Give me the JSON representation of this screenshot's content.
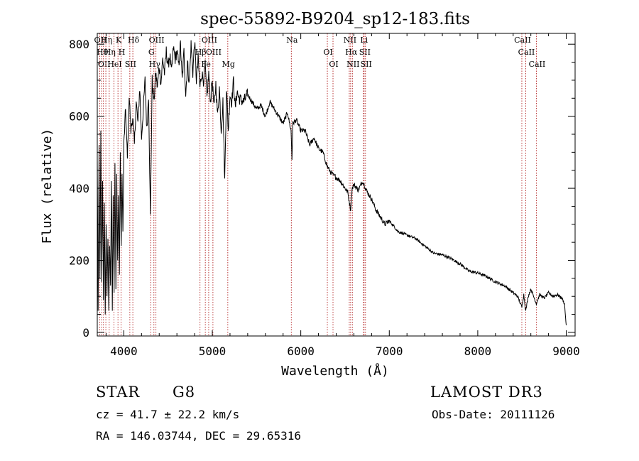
{
  "chart_data": {
    "type": "line",
    "title": "spec-55892-B9204_sp12-183.fits",
    "xlabel": "Wavelength (Å)",
    "ylabel": "Flux (relative)",
    "xlim": [
      3700,
      9100
    ],
    "ylim": [
      -10,
      830
    ],
    "xticks": [
      4000,
      5000,
      6000,
      7000,
      8000,
      9000
    ],
    "yticks": [
      0,
      200,
      400,
      600,
      800
    ],
    "series": [
      {
        "name": "flux",
        "x": [
          3700,
          3710,
          3720,
          3730,
          3740,
          3750,
          3760,
          3770,
          3780,
          3790,
          3800,
          3810,
          3820,
          3830,
          3840,
          3850,
          3860,
          3870,
          3880,
          3890,
          3900,
          3910,
          3920,
          3930,
          3940,
          3950,
          3960,
          3970,
          3980,
          3990,
          4000,
          4020,
          4040,
          4060,
          4080,
          4100,
          4120,
          4140,
          4160,
          4180,
          4200,
          4220,
          4240,
          4260,
          4280,
          4300,
          4320,
          4340,
          4360,
          4380,
          4400,
          4420,
          4440,
          4460,
          4480,
          4500,
          4520,
          4540,
          4560,
          4580,
          4600,
          4620,
          4640,
          4660,
          4680,
          4700,
          4720,
          4740,
          4760,
          4780,
          4800,
          4820,
          4840,
          4860,
          4880,
          4900,
          4920,
          4940,
          4960,
          4980,
          5000,
          5020,
          5040,
          5060,
          5080,
          5100,
          5120,
          5140,
          5160,
          5180,
          5200,
          5220,
          5240,
          5260,
          5280,
          5300,
          5350,
          5400,
          5450,
          5500,
          5550,
          5600,
          5650,
          5700,
          5750,
          5800,
          5850,
          5890,
          5900,
          5910,
          5950,
          6000,
          6050,
          6100,
          6150,
          6200,
          6250,
          6300,
          6350,
          6400,
          6450,
          6500,
          6530,
          6563,
          6580,
          6600,
          6650,
          6700,
          6750,
          6800,
          6850,
          6900,
          6950,
          7000,
          7100,
          7200,
          7300,
          7400,
          7500,
          7600,
          7700,
          7800,
          7900,
          8000,
          8100,
          8200,
          8300,
          8400,
          8450,
          8498,
          8520,
          8542,
          8570,
          8600,
          8662,
          8700,
          8750,
          8800,
          8850,
          8900,
          8950,
          8980,
          9000
        ],
        "y": [
          480,
          60,
          520,
          150,
          560,
          140,
          420,
          90,
          360,
          50,
          300,
          100,
          260,
          60,
          240,
          130,
          420,
          60,
          380,
          110,
          470,
          120,
          440,
          200,
          380,
          160,
          500,
          240,
          440,
          280,
          520,
          620,
          480,
          660,
          560,
          600,
          520,
          640,
          580,
          680,
          540,
          620,
          700,
          560,
          660,
          320,
          700,
          640,
          720,
          680,
          740,
          690,
          760,
          720,
          780,
          740,
          770,
          720,
          790,
          760,
          780,
          740,
          800,
          700,
          780,
          660,
          750,
          690,
          800,
          720,
          810,
          700,
          760,
          680,
          720,
          700,
          740,
          650,
          720,
          640,
          700,
          620,
          690,
          600,
          680,
          560,
          640,
          420,
          680,
          560,
          660,
          640,
          700,
          620,
          670,
          650,
          640,
          660,
          640,
          620,
          630,
          600,
          640,
          620,
          600,
          580,
          610,
          560,
          480,
          580,
          590,
          560,
          560,
          520,
          540,
          510,
          500,
          460,
          440,
          430,
          420,
          400,
          390,
          340,
          400,
          410,
          395,
          420,
          390,
          370,
          340,
          320,
          300,
          310,
          280,
          270,
          260,
          240,
          220,
          215,
          205,
          190,
          170,
          165,
          155,
          140,
          130,
          110,
          100,
          70,
          105,
          60,
          100,
          120,
          80,
          105,
          95,
          110,
          100,
          105,
          95,
          80,
          20
        ]
      }
    ],
    "lines": [
      {
        "x": 3727,
        "label": "OII"
      },
      {
        "x": 3750,
        "label": "Hθ"
      },
      {
        "x": 3770,
        "label": "OII"
      },
      {
        "x": 3797,
        "label": "Hη"
      },
      {
        "x": 3835,
        "label": "Hη"
      },
      {
        "x": 3889,
        "label": "HeI"
      },
      {
        "x": 3934,
        "label": "K"
      },
      {
        "x": 3969,
        "label": "H"
      },
      {
        "x": 4068,
        "label": "SII"
      },
      {
        "x": 4102,
        "label": "Hδ"
      },
      {
        "x": 4304,
        "label": "G"
      },
      {
        "x": 4340,
        "label": "Hγ"
      },
      {
        "x": 4363,
        "label": "OIII"
      },
      {
        "x": 4861,
        "label": "Hβ"
      },
      {
        "x": 4921,
        "label": "Fe"
      },
      {
        "x": 4959,
        "label": "OIII"
      },
      {
        "x": 5007,
        "label": "OIII"
      },
      {
        "x": 5175,
        "label": "Mg"
      },
      {
        "x": 5893,
        "label": "Na"
      },
      {
        "x": 6300,
        "label": "OI"
      },
      {
        "x": 6364,
        "label": "OI"
      },
      {
        "x": 6548,
        "label": "NII"
      },
      {
        "x": 6563,
        "label": "Hα"
      },
      {
        "x": 6583,
        "label": "NII"
      },
      {
        "x": 6707,
        "label": "Li"
      },
      {
        "x": 6716,
        "label": "SII"
      },
      {
        "x": 6731,
        "label": "SII"
      },
      {
        "x": 8498,
        "label": "CaII"
      },
      {
        "x": 8542,
        "label": "CaII"
      },
      {
        "x": 8662,
        "label": "CaII"
      }
    ]
  },
  "info": {
    "object_class": "STAR",
    "subclass": "G8",
    "survey": "LAMOST DR3",
    "cz": "cz = 41.7 ± 22.2 km/s",
    "obs_date": "Obs-Date: 20111126",
    "coords": "RA = 146.03744, DEC =  29.65316"
  }
}
